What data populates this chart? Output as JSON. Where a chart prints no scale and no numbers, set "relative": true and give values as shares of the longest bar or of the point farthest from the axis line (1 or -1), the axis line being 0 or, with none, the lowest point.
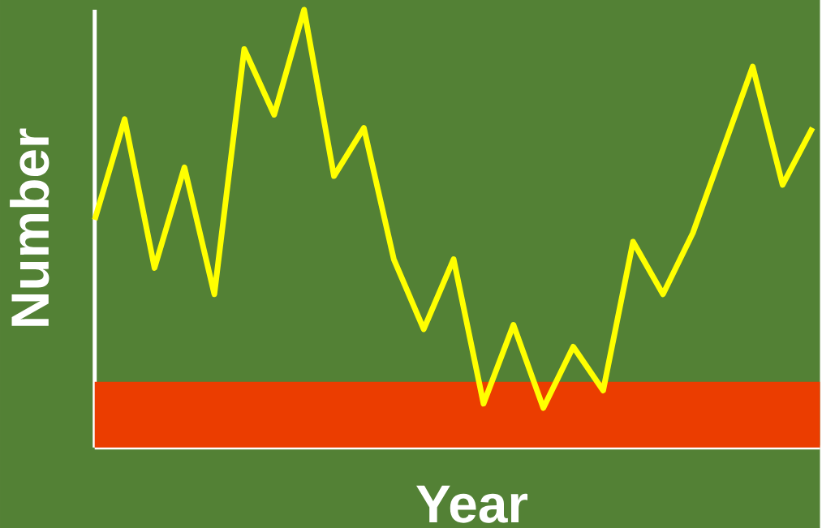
{
  "chart_data": {
    "type": "line",
    "relative": true,
    "xlabel": "Year",
    "ylabel": "Number",
    "categories": [
      null,
      null,
      null,
      null,
      null,
      null,
      null,
      null,
      null,
      null,
      null,
      null,
      null,
      null,
      null,
      null,
      null,
      null,
      null,
      null,
      null,
      null,
      null,
      null,
      null
    ],
    "series": [
      {
        "color": "#ffff00",
        "values": [
          0.52,
          0.75,
          0.41,
          0.64,
          0.35,
          0.91,
          0.76,
          1.0,
          0.62,
          0.73,
          0.43,
          0.27,
          0.43,
          0.1,
          0.28,
          0.09,
          0.23,
          0.13,
          0.47,
          0.35,
          0.49,
          0.68,
          0.87,
          0.6,
          0.73
        ]
      }
    ],
    "bands": [
      {
        "axis": "y",
        "from": 0,
        "to": 0.15,
        "color": "#eb3d00"
      }
    ],
    "marker": "none",
    "line_style": "solid"
  }
}
